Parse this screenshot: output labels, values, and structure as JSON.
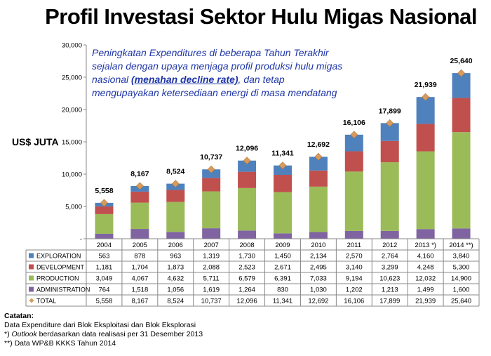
{
  "title": "Profil Investasi Sektor Hulu Migas Nasional",
  "callout": {
    "part1": "Peningkatan Expenditures di beberapa Tahun Terakhir sejalan dengan upaya menjaga profil produksi hulu migas nasional ",
    "emph": "(menahan decline rate)",
    "part2": ", dan tetap mengupayakan ketersediaan energi di masa mendatang"
  },
  "unit_label": "US$ JUTA",
  "notes": {
    "heading": "Catatan:",
    "line1": "Data Expenditure dari Blok Eksploitasi dan Blok Eksplorasi",
    "line2_prefix": "*) ",
    "line2_italic": "Outlook",
    "line2_rest": " berdasarkan data realisasi per 31 Desember 2013",
    "line3": "**) Data WP&B KKKS Tahun 2014"
  },
  "chart_data": {
    "type": "bar",
    "stacked": true,
    "categories": [
      "2004",
      "2005",
      "2006",
      "2007",
      "2008",
      "2009",
      "2010",
      "2011",
      "2012",
      "2013 *)",
      "2014 **)"
    ],
    "series": [
      {
        "name": "ADMINISTRATION",
        "color": "#8064a2",
        "values": [
          764,
          1518,
          1056,
          1619,
          1264,
          830,
          1030,
          1202,
          1213,
          1499,
          1600
        ],
        "labels": [
          "764",
          "1,518",
          "1,056",
          "1,619",
          "1,264",
          "830",
          "1,030",
          "1,202",
          "1,213",
          "1,499",
          "1,600"
        ]
      },
      {
        "name": "PRODUCTION",
        "color": "#9bbb59",
        "values": [
          3049,
          4067,
          4632,
          5711,
          6579,
          6391,
          7033,
          9194,
          10623,
          12032,
          14900
        ],
        "labels": [
          "3,049",
          "4,067",
          "4,632",
          "5,711",
          "6,579",
          "6,391",
          "7,033",
          "9,194",
          "10,623",
          "12,032",
          "14,900"
        ]
      },
      {
        "name": "DEVELOPMENT",
        "color": "#c0504d",
        "values": [
          1181,
          1704,
          1873,
          2088,
          2523,
          2671,
          2495,
          3140,
          3299,
          4248,
          5300
        ],
        "labels": [
          "1,181",
          "1,704",
          "1,873",
          "2,088",
          "2,523",
          "2,671",
          "2,495",
          "3,140",
          "3,299",
          "4,248",
          "5,300"
        ]
      },
      {
        "name": "EXPLORATION",
        "color": "#4f81bd",
        "values": [
          563,
          878,
          963,
          1319,
          1730,
          1450,
          2134,
          2570,
          2764,
          4160,
          3840
        ],
        "labels": [
          "563",
          "878",
          "963",
          "1,319",
          "1,730",
          "1,450",
          "2,134",
          "2,570",
          "2,764",
          "4,160",
          "3,840"
        ]
      }
    ],
    "total": {
      "name": "TOTAL",
      "color": "#d99b5b",
      "values": [
        5558,
        8167,
        8524,
        10737,
        12096,
        11341,
        12692,
        16106,
        17899,
        21939,
        25640
      ],
      "labels": [
        "5,558",
        "8,167",
        "8,524",
        "10,737",
        "12,096",
        "11,341",
        "12,692",
        "16,106",
        "17,899",
        "21,939",
        "25,640"
      ]
    },
    "table_order": [
      "EXPLORATION",
      "DEVELOPMENT",
      "PRODUCTION",
      "ADMINISTRATION",
      "TOTAL"
    ],
    "yticks": [
      "30,000",
      "25,000",
      "20,000",
      "15,000",
      "10,000",
      "5,000",
      "-"
    ],
    "ylim": [
      0,
      30000
    ],
    "grid": false,
    "legend": "data-table"
  }
}
